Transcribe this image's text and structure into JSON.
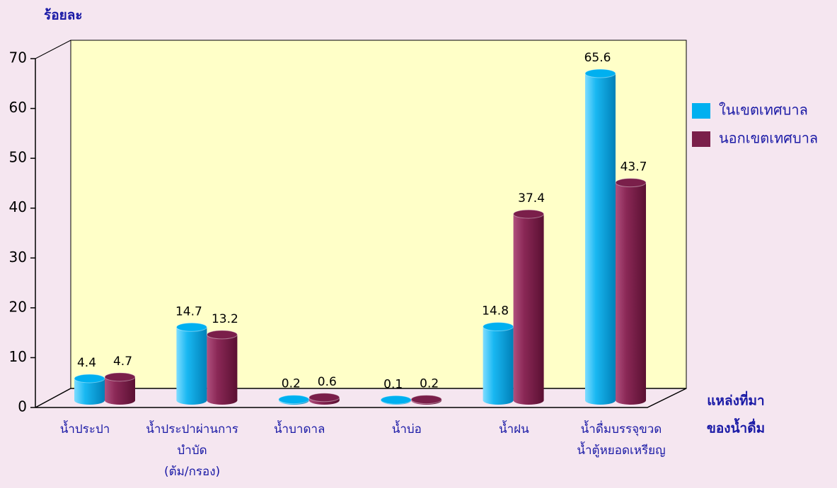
{
  "chart_data": {
    "type": "bar3d",
    "y_label": "ร้อยละ",
    "x_label": [
      "แหล่งที่มา",
      "ของน้ำดื่ม"
    ],
    "categories": [
      [
        "น้ำประปา"
      ],
      [
        "น้ำประปาผ่านการ",
        "บำบัด",
        "(ต้ม/กรอง)"
      ],
      [
        "น้ำบาดาล"
      ],
      [
        "น้ำบ่อ"
      ],
      [
        "น้ำฝน"
      ],
      [
        "น้ำดื่มบรรจุขวด",
        "น้ำตู้หยอดเหรียญ"
      ]
    ],
    "series": [
      {
        "name": "ในเขตเทศบาล",
        "color": "#00b0f0",
        "values": [
          4.4,
          14.7,
          0.2,
          0.1,
          14.8,
          65.6
        ]
      },
      {
        "name": "นอกเขตเทศบาล",
        "color": "#7a1f4a",
        "values": [
          4.7,
          13.2,
          0.6,
          0.2,
          37.4,
          43.7
        ]
      }
    ],
    "ylim": [
      0,
      70
    ],
    "yticks": [
      0,
      10,
      20,
      30,
      40,
      50,
      60,
      70
    ],
    "legend": "right"
  }
}
